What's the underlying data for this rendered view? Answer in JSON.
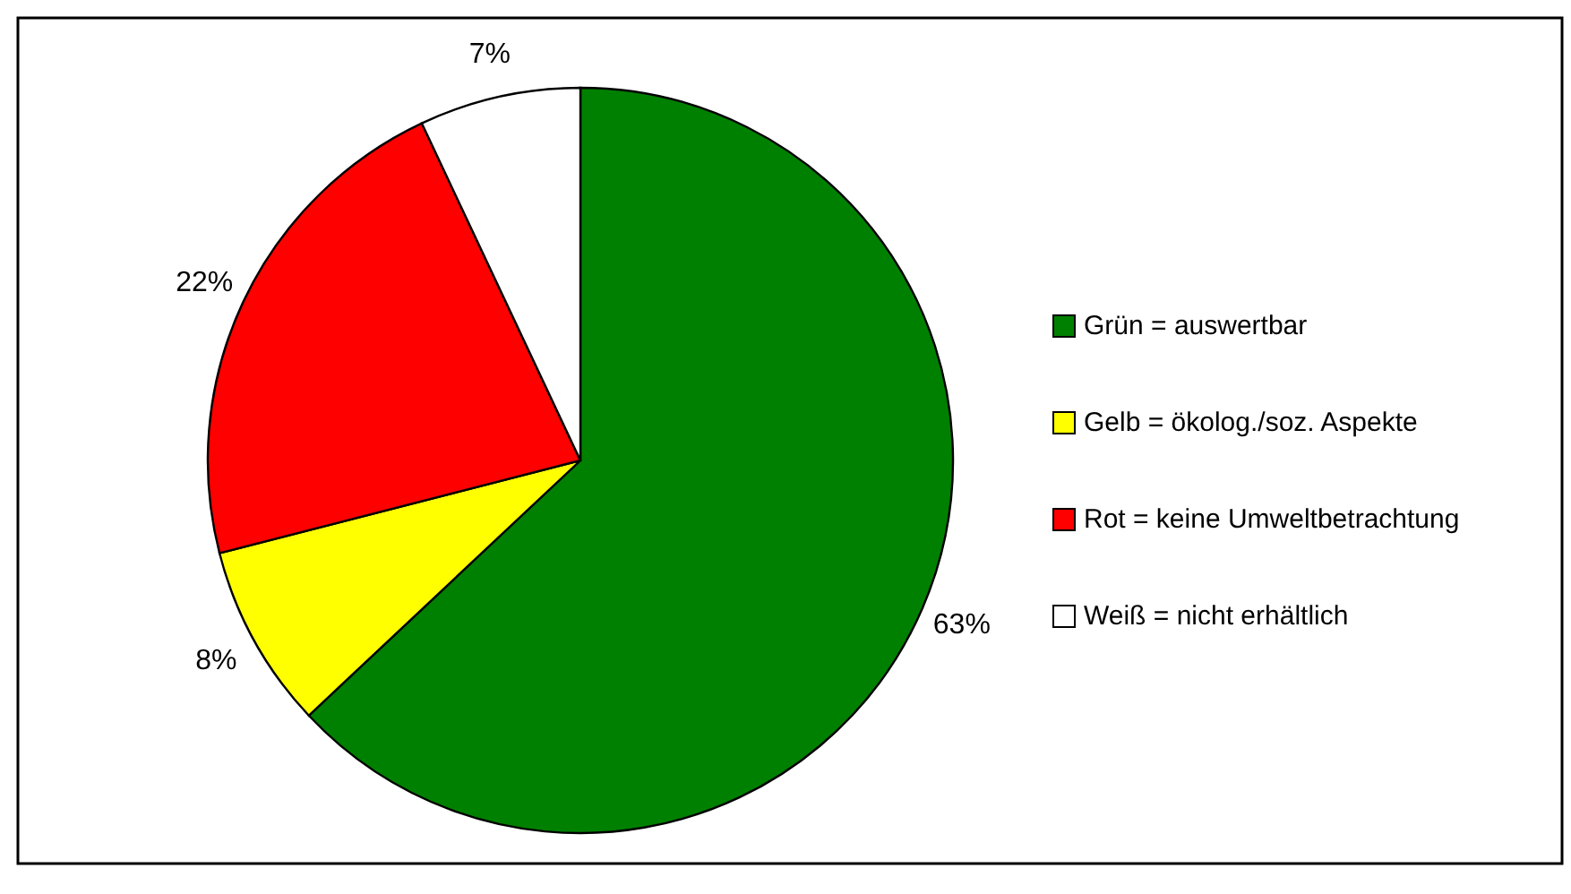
{
  "chart_data": {
    "type": "pie",
    "categories": [
      "Grün = auswertbar",
      "Gelb = ökolog./soz. Aspekte",
      "Rot = keine Umweltbetrachtung",
      "Weiß = nicht erhältlich"
    ],
    "values": [
      63,
      8,
      22,
      7
    ],
    "colors": [
      "#008000",
      "#ffff00",
      "#ff0000",
      "#ffffff"
    ],
    "value_labels": [
      "63%",
      "8%",
      "22%",
      "7%"
    ],
    "legend": "right"
  }
}
